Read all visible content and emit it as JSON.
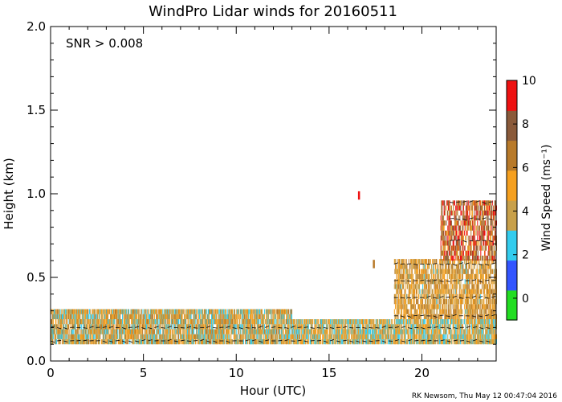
{
  "chart_data": {
    "type": "heatmap",
    "title": "WindPro Lidar winds for 20160511",
    "xlabel": "Hour (UTC)",
    "ylabel": "Height (km)",
    "xlim": [
      0,
      24
    ],
    "ylim": [
      0,
      2.0
    ],
    "xticks": [
      0,
      5,
      10,
      15,
      20
    ],
    "xtick_labels": [
      "0",
      "5",
      "10",
      "15",
      "20"
    ],
    "yticks": [
      0.0,
      0.5,
      1.0,
      1.5,
      2.0
    ],
    "ytick_labels": [
      "0.0",
      "0.5",
      "1.0",
      "1.5",
      "2.0"
    ],
    "annotation": "SNR > 0.008",
    "footer": "RK Newsom, Thu May 12 00:47:04 2016",
    "colorbar": {
      "label": "Wind Speed (ms⁻¹)",
      "range": [
        -1,
        10
      ],
      "ticks": [
        0,
        2,
        4,
        6,
        8,
        10
      ],
      "tick_labels": [
        "0",
        "2",
        "4",
        "6",
        "8",
        "10"
      ],
      "colors": [
        "#22dd22",
        "#3355ff",
        "#33ccee",
        "#c8a04a",
        "#f5a020",
        "#b87a2a",
        "#8a5a3a",
        "#ee1111"
      ]
    },
    "observations": [
      {
        "hours": [
          0.0,
          13.0
        ],
        "heights": [
          0.1,
          0.3
        ],
        "speed_range": [
          2,
          7
        ]
      },
      {
        "hours": [
          13.0,
          24.0
        ],
        "heights": [
          0.1,
          0.25
        ],
        "speed_range": [
          2,
          6
        ]
      },
      {
        "hours": [
          18.5,
          24.0
        ],
        "heights": [
          0.25,
          0.6
        ],
        "speed_range": [
          3,
          7
        ]
      },
      {
        "hours": [
          21.0,
          24.0
        ],
        "heights": [
          0.6,
          0.95
        ],
        "speed_range": [
          5,
          10
        ]
      }
    ],
    "outliers": [
      {
        "hour": 16.6,
        "height": 0.99,
        "speed": 10
      },
      {
        "hour": 17.4,
        "height": 0.58,
        "speed": 6
      }
    ]
  }
}
